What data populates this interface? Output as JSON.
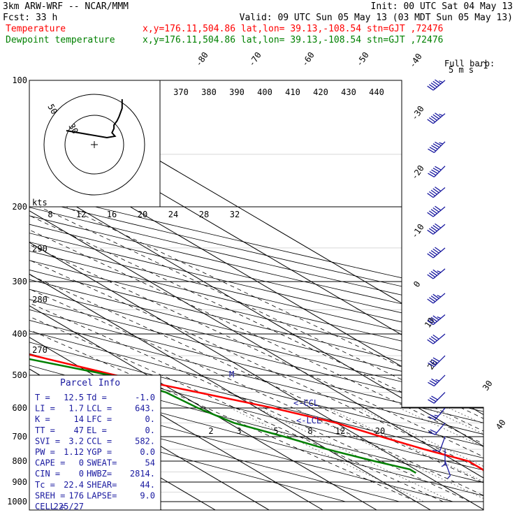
{
  "header": {
    "model": "3km ARW-WRF -- NCAR/MMM",
    "init": "Init: 00 UTC Sat 04 May 13",
    "fcst": "Fcst:   33 h",
    "valid": "Valid: 09 UTC Sun 05 May 13 (03 MDT Sun 05 May 13)",
    "temp_label": "Temperature",
    "dew_label": "Dewpoint temperature",
    "loc": "x,y=176.11,504.86   lat,lon= 39.13,-108.54  stn=GJT ,72476"
  },
  "colors": {
    "temperature": "#ff0000",
    "dewpoint": "#008000",
    "axes": "#000000"
  },
  "barb_legend": {
    "line1": "Full barb:",
    "line2": "5 m s",
    "sup": "-1"
  },
  "hodo": {
    "unit": "kts",
    "r1": "30",
    "r2": "50"
  },
  "parcel_info": {
    "title": "Parcel Info",
    "rows": [
      [
        "T  =",
        "12.5",
        "Td =",
        "-1.0"
      ],
      [
        "LI =",
        "1.7",
        "LCL =",
        "643."
      ],
      [
        "K  =",
        "14",
        "LFC =",
        "0."
      ],
      [
        "TT =",
        "47",
        "EL  =",
        "0."
      ],
      [
        "SVI =",
        "3.2",
        "CCL =",
        "582."
      ],
      [
        "PW =",
        "1.12",
        "YGP =",
        "0.0"
      ],
      [
        "CAPE =",
        "0",
        "SWEAT=",
        "54"
      ],
      [
        "CIN =",
        "0",
        "HWBZ=",
        "2814."
      ],
      [
        "Tc =",
        "22.4",
        "SHEAR=",
        "44."
      ],
      [
        "SREH =",
        "176",
        "LAPSE=",
        "9.0"
      ],
      [
        "CELL =",
        "225/27",
        "",
        ""
      ]
    ]
  },
  "markers": {
    "ccl": "<-CCL",
    "lcl": "<-LCL",
    "m": "M"
  },
  "chart_data": {
    "type": "line",
    "pressure_levels": [
      "100",
      "200",
      "300",
      "400",
      "500",
      "600",
      "700",
      "800",
      "900",
      "1000"
    ],
    "isotherm_labels": [
      "-80",
      "-70",
      "-60",
      "-50",
      "-40",
      "-30",
      "-20",
      "-10",
      "0",
      "10",
      "20",
      "30",
      "40"
    ],
    "theta_labels": [
      "370",
      "380",
      "390",
      "400",
      "410",
      "420",
      "430",
      "440"
    ],
    "theta_low_labels": [
      "290",
      "280",
      "270"
    ],
    "mixing_ratio_top": [
      "8",
      "12",
      "16",
      "20",
      "24",
      "28",
      "32"
    ],
    "mixing_ratio_bottom": [
      "2",
      "3",
      "5",
      "8",
      "12",
      "20"
    ],
    "series": [
      {
        "name": "Temperature",
        "points": [
          [
            100,
            -60.5
          ],
          [
            120,
            -61.5
          ],
          [
            140,
            -62.5
          ],
          [
            160,
            -60.5
          ],
          [
            180,
            -63
          ],
          [
            200,
            -67
          ],
          [
            215,
            -70
          ],
          [
            230,
            -72.5
          ],
          [
            250,
            -73
          ],
          [
            270,
            -69
          ],
          [
            300,
            -63
          ],
          [
            350,
            -53
          ],
          [
            400,
            -44
          ],
          [
            450,
            -35
          ],
          [
            500,
            -26
          ],
          [
            550,
            -16
          ],
          [
            600,
            -7
          ],
          [
            650,
            0
          ],
          [
            700,
            4
          ],
          [
            750,
            8
          ],
          [
            800,
            12.5
          ],
          [
            838,
            12.5
          ],
          [
            860,
            12
          ]
        ]
      },
      {
        "name": "Dewpoint temperature",
        "points": [
          [
            100,
            -86
          ],
          [
            130,
            -83
          ],
          [
            160,
            -80
          ],
          [
            200,
            -77
          ],
          [
            230,
            -79
          ],
          [
            260,
            -77
          ],
          [
            300,
            -73
          ],
          [
            350,
            -62
          ],
          [
            400,
            -52
          ],
          [
            450,
            -39
          ],
          [
            500,
            -27
          ],
          [
            550,
            -22
          ],
          [
            600,
            -21
          ],
          [
            650,
            -19
          ],
          [
            700,
            -14
          ],
          [
            750,
            -10
          ],
          [
            800,
            -5
          ],
          [
            838,
            -1
          ],
          [
            855,
            -1
          ]
        ]
      }
    ],
    "wind_barbs": [
      {
        "p": 100,
        "dir": 230,
        "spd": 55
      },
      {
        "p": 120,
        "dir": 230,
        "spd": 55
      },
      {
        "p": 140,
        "dir": 225,
        "spd": 55
      },
      {
        "p": 160,
        "dir": 225,
        "spd": 50
      },
      {
        "p": 180,
        "dir": 230,
        "spd": 50
      },
      {
        "p": 200,
        "dir": 230,
        "spd": 50
      },
      {
        "p": 220,
        "dir": 230,
        "spd": 50
      },
      {
        "p": 250,
        "dir": 230,
        "spd": 50
      },
      {
        "p": 280,
        "dir": 230,
        "spd": 45
      },
      {
        "p": 320,
        "dir": 230,
        "spd": 45
      },
      {
        "p": 360,
        "dir": 230,
        "spd": 45
      },
      {
        "p": 400,
        "dir": 230,
        "spd": 40
      },
      {
        "p": 450,
        "dir": 225,
        "spd": 40
      },
      {
        "p": 500,
        "dir": 225,
        "spd": 35
      },
      {
        "p": 550,
        "dir": 225,
        "spd": 30
      },
      {
        "p": 600,
        "dir": 220,
        "spd": 25
      },
      {
        "p": 650,
        "dir": 220,
        "spd": 20
      },
      {
        "p": 700,
        "dir": 200,
        "spd": 10
      },
      {
        "p": 750,
        "dir": 180,
        "spd": 5
      },
      {
        "p": 800,
        "dir": 160,
        "spd": 5
      }
    ],
    "hodograph": [
      [
        0,
        0
      ],
      [
        -10,
        40
      ],
      [
        -8,
        48
      ],
      [
        -3,
        45
      ],
      [
        3,
        47
      ],
      [
        8,
        47
      ],
      [
        14,
        50
      ],
      [
        20,
        52
      ],
      [
        32,
        55
      ],
      [
        40,
        55
      ],
      [
        45,
        55
      ]
    ]
  }
}
